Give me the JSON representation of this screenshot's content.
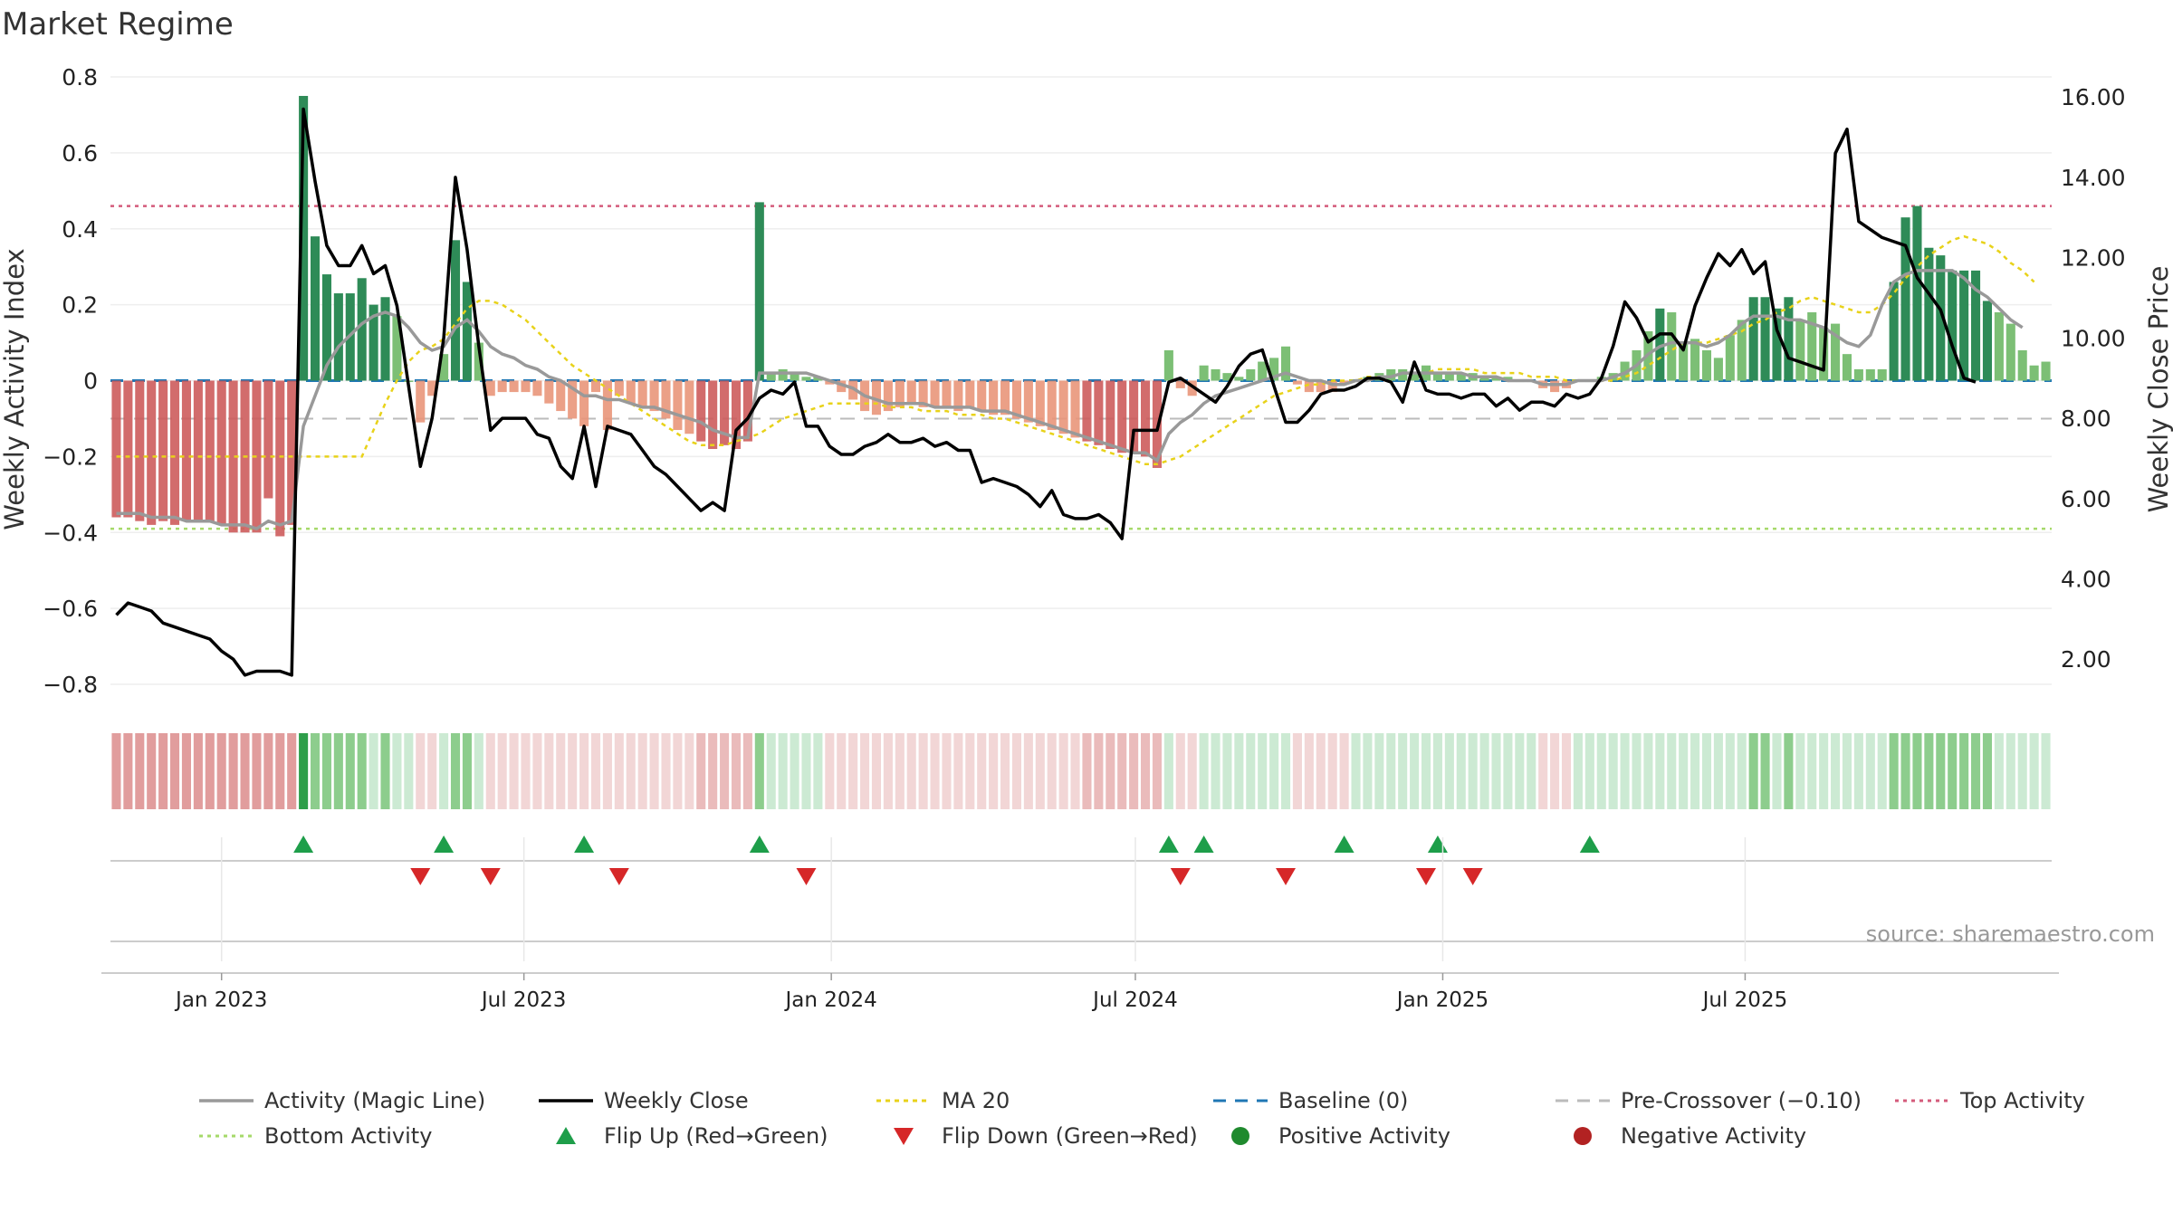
{
  "chart_data": {
    "type": "bar",
    "title": "Market Regime",
    "ylabel": "Weekly Activity Index",
    "y2label": "Weekly Close Price",
    "ylim": [
      -0.85,
      0.8
    ],
    "y2lim": [
      0.9,
      16.5
    ],
    "yticks": [
      "0.8",
      "0.6",
      "0.4",
      "0.2",
      "0",
      "−0.2",
      "−0.4",
      "−0.6",
      "−0.8"
    ],
    "yticks_values": [
      0.8,
      0.6,
      0.4,
      0.2,
      0,
      -0.2,
      -0.4,
      -0.6,
      -0.8
    ],
    "y2ticks": [
      "16.00",
      "14.00",
      "12.00",
      "10.00",
      "8.00",
      "6.00",
      "4.00",
      "2.00"
    ],
    "y2ticks_values": [
      16,
      14,
      12,
      10,
      8,
      6,
      4,
      2
    ],
    "xticks": [
      "Jan 2023",
      "Jul 2023",
      "Jan 2024",
      "Jul 2024",
      "Jan 2025",
      "Jul 2025"
    ],
    "xticks_values": [
      "2023-01-01",
      "2023-07-01",
      "2024-01-01",
      "2024-07-01",
      "2025-01-01",
      "2025-07-01"
    ],
    "first_week": "2022-10-30",
    "source": "source: sharemaestro.com",
    "reference_lines": {
      "top_activity": 0.46,
      "bottom_activity": -0.39,
      "pre_crossover": -0.1,
      "baseline": 0
    },
    "activity_values": [
      -0.36,
      -0.36,
      -0.37,
      -0.38,
      -0.37,
      -0.38,
      -0.37,
      -0.37,
      -0.37,
      -0.38,
      -0.4,
      -0.4,
      -0.4,
      -0.31,
      -0.41,
      -0.38,
      0.75,
      0.38,
      0.28,
      0.23,
      0.23,
      0.27,
      0.2,
      0.22,
      0.17,
      0.0,
      -0.11,
      -0.04,
      0.07,
      0.37,
      0.26,
      0.1,
      -0.04,
      -0.03,
      -0.03,
      -0.03,
      -0.04,
      -0.06,
      -0.08,
      -0.1,
      -0.12,
      -0.03,
      -0.13,
      -0.04,
      -0.06,
      -0.07,
      -0.08,
      -0.1,
      -0.13,
      -0.14,
      -0.16,
      -0.18,
      -0.17,
      -0.18,
      -0.16,
      0.47,
      0.02,
      0.03,
      0.02,
      0.01,
      0.01,
      -0.01,
      -0.03,
      -0.05,
      -0.08,
      -0.09,
      -0.08,
      -0.07,
      -0.06,
      -0.07,
      -0.07,
      -0.07,
      -0.08,
      -0.07,
      -0.08,
      -0.09,
      -0.09,
      -0.1,
      -0.11,
      -0.12,
      -0.13,
      -0.14,
      -0.15,
      -0.16,
      -0.17,
      -0.18,
      -0.19,
      -0.19,
      -0.2,
      -0.23,
      0.08,
      -0.02,
      -0.04,
      0.04,
      0.03,
      0.02,
      0.01,
      0.03,
      0.05,
      0.06,
      0.09,
      -0.01,
      -0.03,
      -0.03,
      -0.03,
      -0.01,
      0.0,
      0.01,
      0.02,
      0.03,
      0.03,
      0.02,
      0.04,
      0.02,
      0.02,
      0.02,
      0.02,
      0.01,
      0.01,
      0.01,
      0.0,
      0.0,
      -0.02,
      -0.03,
      -0.02,
      0.0,
      0.0,
      0.01,
      0.02,
      0.05,
      0.08,
      0.13,
      0.19,
      0.18,
      0.1,
      0.11,
      0.08,
      0.06,
      0.12,
      0.16,
      0.22,
      0.22,
      0.19,
      0.22,
      0.16,
      0.18,
      0.14,
      0.15,
      0.07,
      0.03,
      0.03,
      0.03,
      0.26,
      0.43,
      0.46,
      0.35,
      0.33,
      0.29,
      0.29,
      0.29,
      0.21,
      0.18,
      0.15,
      0.08,
      0.04,
      0.05
    ],
    "weekly_close": [
      3.1,
      3.4,
      3.3,
      3.2,
      2.9,
      2.8,
      2.7,
      2.6,
      2.5,
      2.2,
      2.0,
      1.6,
      1.7,
      1.7,
      1.7,
      1.6,
      15.7,
      13.9,
      12.3,
      11.8,
      11.8,
      12.3,
      11.6,
      11.8,
      10.8,
      8.8,
      6.8,
      8.0,
      10.0,
      14.0,
      12.2,
      9.8,
      7.7,
      8.0,
      8.0,
      8.0,
      7.6,
      7.5,
      6.8,
      6.5,
      7.8,
      6.3,
      7.8,
      7.7,
      7.6,
      7.2,
      6.8,
      6.6,
      6.3,
      6.0,
      5.7,
      5.9,
      5.7,
      7.7,
      8.0,
      8.5,
      8.7,
      8.6,
      8.9,
      7.8,
      7.8,
      7.3,
      7.1,
      7.1,
      7.3,
      7.4,
      7.6,
      7.4,
      7.4,
      7.5,
      7.3,
      7.4,
      7.2,
      7.2,
      6.4,
      6.5,
      6.4,
      6.3,
      6.1,
      5.8,
      6.2,
      5.6,
      5.5,
      5.5,
      5.6,
      5.4,
      5.0,
      7.7,
      7.7,
      7.7,
      8.9,
      9.0,
      8.8,
      8.6,
      8.4,
      8.8,
      9.3,
      9.6,
      9.7,
      8.8,
      7.9,
      7.9,
      8.2,
      8.6,
      8.7,
      8.7,
      8.8,
      9.0,
      9.0,
      8.9,
      8.4,
      9.4,
      8.7,
      8.6,
      8.6,
      8.5,
      8.6,
      8.6,
      8.3,
      8.5,
      8.2,
      8.4,
      8.4,
      8.3,
      8.6,
      8.5,
      8.6,
      9.0,
      9.8,
      10.9,
      10.5,
      9.9,
      10.1,
      10.1,
      9.7,
      10.8,
      11.5,
      12.1,
      11.8,
      12.2,
      11.6,
      11.9,
      10.2,
      9.5,
      9.4,
      9.3,
      9.2,
      14.6,
      15.2,
      12.9,
      12.7,
      12.5,
      12.4,
      12.3,
      11.5,
      11.1,
      10.7,
      9.8,
      9.0,
      8.9
    ],
    "magic_line": [
      -0.35,
      -0.35,
      -0.35,
      -0.36,
      -0.36,
      -0.36,
      -0.37,
      -0.37,
      -0.37,
      -0.38,
      -0.38,
      -0.38,
      -0.39,
      -0.37,
      -0.38,
      -0.37,
      -0.12,
      -0.04,
      0.04,
      0.09,
      0.12,
      0.15,
      0.17,
      0.18,
      0.17,
      0.14,
      0.1,
      0.08,
      0.09,
      0.14,
      0.16,
      0.13,
      0.09,
      0.07,
      0.06,
      0.04,
      0.03,
      0.01,
      0.0,
      -0.02,
      -0.04,
      -0.04,
      -0.05,
      -0.05,
      -0.06,
      -0.07,
      -0.07,
      -0.08,
      -0.09,
      -0.1,
      -0.11,
      -0.13,
      -0.14,
      -0.15,
      -0.15,
      0.02,
      0.02,
      0.02,
      0.02,
      0.02,
      0.01,
      0.0,
      -0.01,
      -0.02,
      -0.04,
      -0.05,
      -0.06,
      -0.06,
      -0.06,
      -0.06,
      -0.07,
      -0.07,
      -0.07,
      -0.07,
      -0.08,
      -0.08,
      -0.08,
      -0.09,
      -0.1,
      -0.11,
      -0.12,
      -0.13,
      -0.14,
      -0.15,
      -0.16,
      -0.17,
      -0.18,
      -0.19,
      -0.19,
      -0.21,
      -0.14,
      -0.11,
      -0.09,
      -0.06,
      -0.04,
      -0.03,
      -0.02,
      -0.01,
      0.0,
      0.01,
      0.02,
      0.01,
      0.0,
      0.0,
      -0.01,
      -0.01,
      0.0,
      0.0,
      0.01,
      0.01,
      0.02,
      0.02,
      0.02,
      0.02,
      0.02,
      0.02,
      0.01,
      0.01,
      0.01,
      0.0,
      0.0,
      0.0,
      -0.01,
      -0.01,
      -0.01,
      0.0,
      0.0,
      0.0,
      0.01,
      0.02,
      0.04,
      0.07,
      0.09,
      0.1,
      0.1,
      0.1,
      0.09,
      0.1,
      0.12,
      0.15,
      0.17,
      0.17,
      0.17,
      0.16,
      0.16,
      0.15,
      0.14,
      0.12,
      0.1,
      0.09,
      0.12,
      0.2,
      0.26,
      0.28,
      0.29,
      0.29,
      0.29,
      0.29,
      0.27,
      0.24,
      0.22,
      0.19,
      0.16,
      0.14
    ],
    "ma20": [
      -0.2,
      -0.2,
      -0.2,
      -0.2,
      -0.2,
      -0.2,
      -0.2,
      -0.2,
      -0.2,
      -0.2,
      -0.2,
      -0.2,
      -0.2,
      -0.2,
      -0.2,
      -0.2,
      -0.2,
      -0.2,
      -0.2,
      -0.2,
      -0.2,
      -0.2,
      -0.13,
      -0.06,
      0.0,
      0.05,
      0.08,
      0.09,
      0.11,
      0.15,
      0.19,
      0.21,
      0.21,
      0.2,
      0.18,
      0.16,
      0.13,
      0.1,
      0.07,
      0.04,
      0.02,
      0.0,
      -0.02,
      -0.04,
      -0.06,
      -0.08,
      -0.1,
      -0.12,
      -0.14,
      -0.16,
      -0.17,
      -0.17,
      -0.17,
      -0.16,
      -0.15,
      -0.14,
      -0.12,
      -0.1,
      -0.09,
      -0.08,
      -0.07,
      -0.06,
      -0.06,
      -0.06,
      -0.06,
      -0.06,
      -0.07,
      -0.07,
      -0.07,
      -0.08,
      -0.08,
      -0.08,
      -0.09,
      -0.09,
      -0.09,
      -0.1,
      -0.1,
      -0.11,
      -0.12,
      -0.13,
      -0.14,
      -0.15,
      -0.16,
      -0.17,
      -0.18,
      -0.19,
      -0.2,
      -0.21,
      -0.22,
      -0.22,
      -0.21,
      -0.2,
      -0.18,
      -0.16,
      -0.14,
      -0.12,
      -0.1,
      -0.08,
      -0.06,
      -0.04,
      -0.03,
      -0.02,
      -0.01,
      -0.01,
      0.0,
      0.0,
      0.0,
      0.01,
      0.01,
      0.01,
      0.02,
      0.02,
      0.02,
      0.03,
      0.03,
      0.03,
      0.03,
      0.02,
      0.02,
      0.02,
      0.02,
      0.01,
      0.01,
      0.01,
      0.0,
      0.0,
      0.0,
      0.0,
      0.0,
      0.01,
      0.02,
      0.04,
      0.06,
      0.08,
      0.1,
      0.1,
      0.1,
      0.11,
      0.12,
      0.13,
      0.15,
      0.16,
      0.18,
      0.19,
      0.21,
      0.22,
      0.21,
      0.2,
      0.19,
      0.18,
      0.18,
      0.2,
      0.23,
      0.27,
      0.3,
      0.33,
      0.35,
      0.37,
      0.38,
      0.37,
      0.36,
      0.34,
      0.31,
      0.29,
      0.26
    ],
    "regime_colors": {
      "strong_positive": "#2e8b57",
      "positive": "#7cbf75",
      "strong_negative": "#cd5c5c",
      "negative": "#e9967a",
      "close_line": "#000000",
      "magic_line": "#999999",
      "ma20": "#e8d21a",
      "baseline": "#1f77b4",
      "pre_crossover": "#bbbbbb",
      "top_activity": "#d45b7b",
      "bottom_activity": "#a6d96a",
      "flip_up": "#1e9e4a",
      "flip_down": "#d62728"
    },
    "flip_up_weeks": [
      16,
      28,
      40,
      55,
      90,
      93,
      105,
      113,
      126
    ],
    "flip_down_weeks": [
      26,
      32,
      43,
      59,
      91,
      100,
      112,
      116
    ],
    "legend": [
      {
        "label": "Activity (Magic Line)",
        "style": "line-gray"
      },
      {
        "label": "Weekly Close",
        "style": "line-black"
      },
      {
        "label": "MA 20",
        "style": "dotted-yellow"
      },
      {
        "label": "Baseline (0)",
        "style": "dashed-blue"
      },
      {
        "label": "Pre-Crossover (−0.10)",
        "style": "dashed-gray"
      },
      {
        "label": "Top Activity",
        "style": "dotted-red"
      },
      {
        "label": "Bottom Activity",
        "style": "dotted-green"
      },
      {
        "label": "Flip Up (Red→Green)",
        "style": "triangle-up"
      },
      {
        "label": "Flip Down (Green→Red)",
        "style": "triangle-down"
      },
      {
        "label": "Positive Activity",
        "style": "dot-green"
      },
      {
        "label": "Negative Activity",
        "style": "dot-red"
      }
    ]
  }
}
